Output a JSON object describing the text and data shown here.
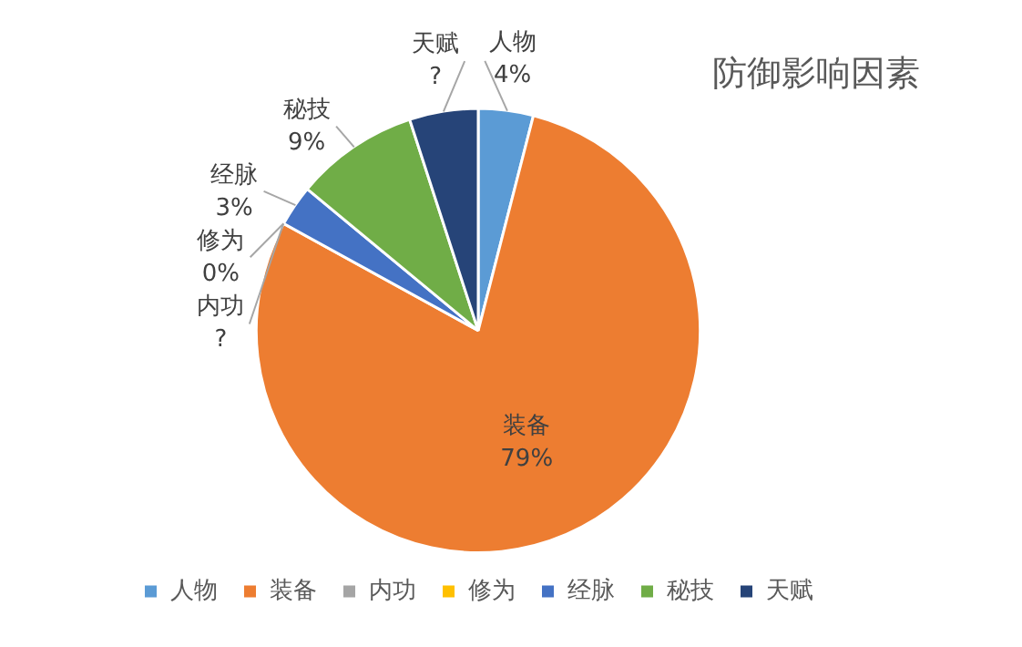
{
  "chart_data": {
    "type": "pie",
    "title": "防御影响因素",
    "categories": [
      "人物",
      "装备",
      "内功",
      "修为",
      "经脉",
      "秘技",
      "天赋"
    ],
    "values": [
      4,
      79,
      0,
      0,
      3,
      9,
      5
    ],
    "value_labels": [
      "4%",
      "79%",
      "?",
      "0%",
      "3%",
      "9%",
      "?"
    ],
    "colors": [
      "#5b9bd5",
      "#ed7d31",
      "#a5a5a5",
      "#ffc000",
      "#4472c4",
      "#70ad47",
      "#264478"
    ],
    "legend": "bottom"
  }
}
